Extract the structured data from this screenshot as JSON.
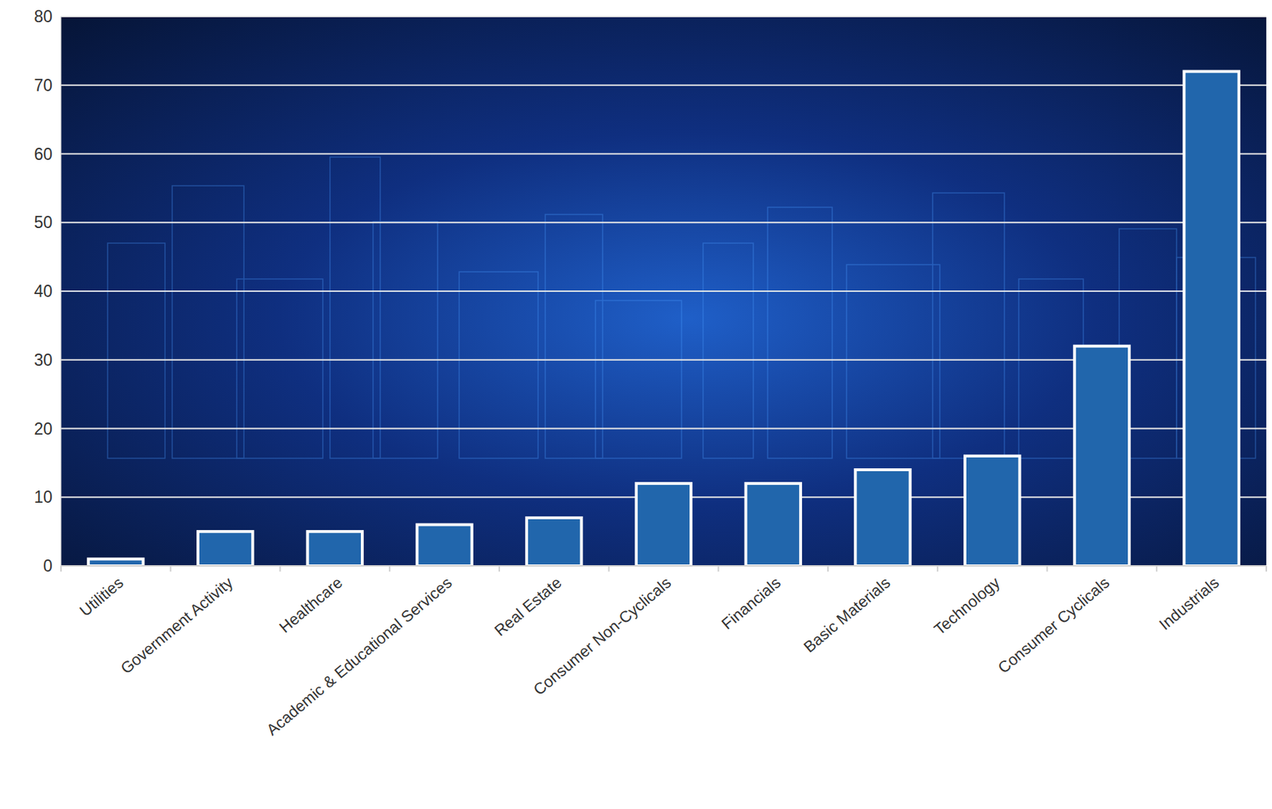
{
  "chart_data": {
    "type": "bar",
    "categories": [
      "Utilities",
      "Government Activity",
      "Healthcare",
      "Academic & Educational Services",
      "Real Estate",
      "Consumer Non-Cyclicals",
      "Financials",
      "Basic Materials",
      "Technology",
      "Consumer Cyclicals",
      "Industrials"
    ],
    "values": [
      1,
      5,
      5,
      6,
      7,
      12,
      12,
      14,
      16,
      32,
      72
    ],
    "color": "#2166ac",
    "ylim": [
      0,
      80
    ],
    "yticks": [
      0,
      10,
      20,
      30,
      40,
      50,
      60,
      70,
      80
    ],
    "grid": true
  }
}
